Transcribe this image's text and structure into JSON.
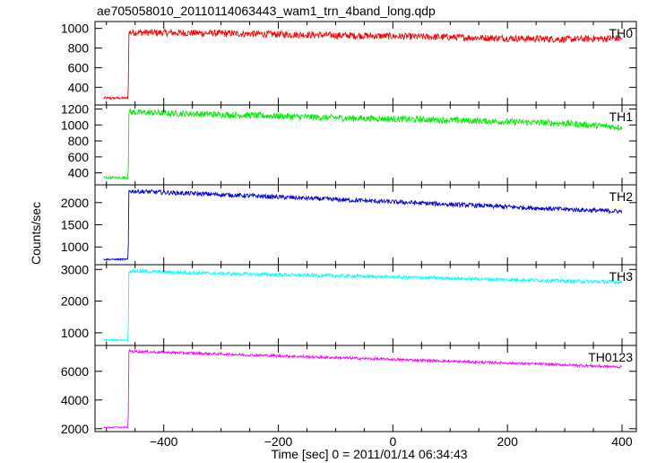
{
  "title": "ae705058010_20110114063443_wam1_trn_4band_long.qdp",
  "ylabel": "Counts/sec",
  "xlabel": "Time [sec] 0 = 2011/01/14 06:34:43",
  "chart_data": {
    "type": "line",
    "title": "ae705058010_20110114063443_wam1_trn_4band_long.qdp",
    "xlabel": "Time [sec] 0 = 2011/01/14 06:34:43",
    "ylabel": "Counts/sec",
    "xlim": [
      -520,
      425
    ],
    "x_ticks": [
      -400,
      -200,
      0,
      200,
      400
    ],
    "grid": false,
    "panels": [
      {
        "name": "TH0",
        "color": "#ff0000",
        "ylim": [
          220,
          1070
        ],
        "y_ticks": [
          400,
          600,
          800,
          1000
        ],
        "x": [
          -505,
          -462,
          -461,
          -300,
          -100,
          100,
          300,
          400
        ],
        "y": [
          290,
          290,
          960,
          950,
          930,
          910,
          890,
          900
        ],
        "noise": 35
      },
      {
        "name": "TH1",
        "color": "#00ee00",
        "ylim": [
          250,
          1250
        ],
        "y_ticks": [
          400,
          600,
          800,
          1000,
          1200
        ],
        "x": [
          -505,
          -462,
          -461,
          -300,
          -100,
          100,
          300,
          400
        ],
        "y": [
          340,
          340,
          1160,
          1130,
          1090,
          1060,
          1020,
          970
        ],
        "noise": 40
      },
      {
        "name": "TH2",
        "color": "#0000dd",
        "ylim": [
          600,
          2400
        ],
        "y_ticks": [
          1000,
          1500,
          2000
        ],
        "x": [
          -505,
          -462,
          -461,
          -300,
          -100,
          100,
          300,
          400
        ],
        "y": [
          720,
          720,
          2260,
          2180,
          2070,
          1960,
          1850,
          1800
        ],
        "noise": 50
      },
      {
        "name": "TH3",
        "color": "#00ffff",
        "ylim": [
          600,
          3150
        ],
        "y_ticks": [
          1000,
          2000,
          3000
        ],
        "x": [
          -505,
          -462,
          -461,
          -300,
          -100,
          100,
          300,
          400
        ],
        "y": [
          770,
          770,
          2950,
          2870,
          2800,
          2720,
          2640,
          2600
        ],
        "noise": 55
      },
      {
        "name": "TH0123",
        "color": "#ff00ff",
        "ylim": [
          1800,
          7800
        ],
        "y_ticks": [
          2000,
          4000,
          6000
        ],
        "x": [
          -505,
          -462,
          -461,
          -300,
          -100,
          100,
          300,
          400
        ],
        "y": [
          2100,
          2100,
          7400,
          7200,
          6950,
          6700,
          6450,
          6300
        ],
        "noise": 90
      }
    ]
  }
}
